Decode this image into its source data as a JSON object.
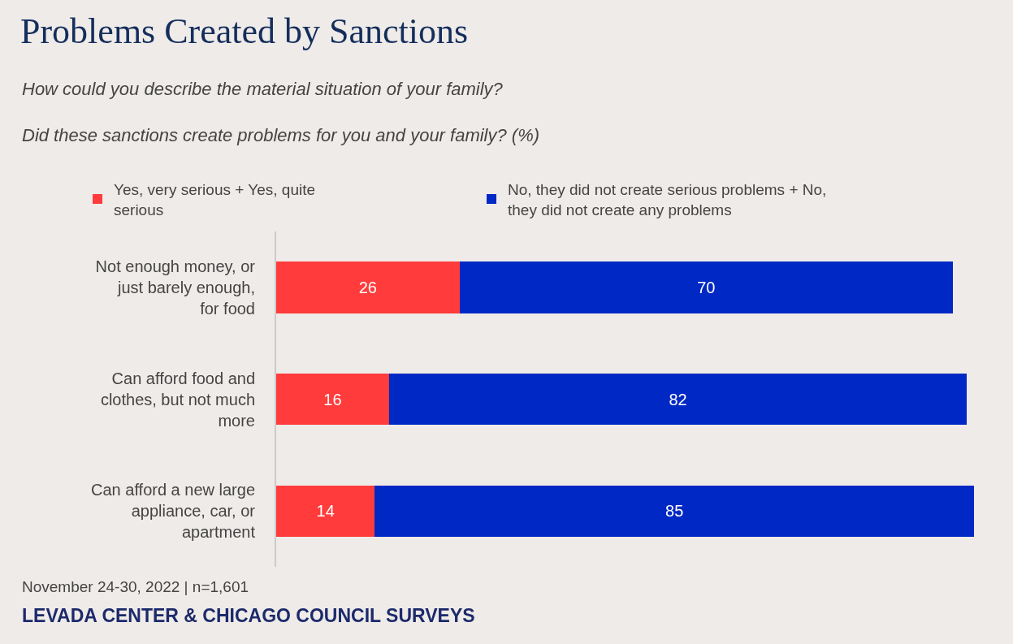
{
  "chart_data": {
    "type": "bar",
    "orientation": "horizontal",
    "stacked": true,
    "data_labels": true,
    "title": "Problems Created by Sanctions",
    "subtitle": "How could you describe the material situation of your family?\n\nDid these sanctions create problems for you and your family? (%)",
    "categories": [
      "Not enough money, or just barely enough, for food",
      "Can afford food and clothes, but not much more",
      "Can afford a new large appliance, car, or apartment"
    ],
    "series": [
      {
        "name": "Yes, very serious + Yes, quite serious",
        "color": "#ff3b3b",
        "values": [
          26,
          16,
          14
        ]
      },
      {
        "name": "No, they did not create serious problems + No, they did not create any problems",
        "color": "#0028c4",
        "values": [
          70,
          82,
          85
        ]
      }
    ],
    "legend": "top",
    "grid": false,
    "annotations": [
      "November 24-30, 2022 | n=1,601",
      "LEVADA CENTER & CHICAGO COUNCIL SURVEYS"
    ]
  }
}
